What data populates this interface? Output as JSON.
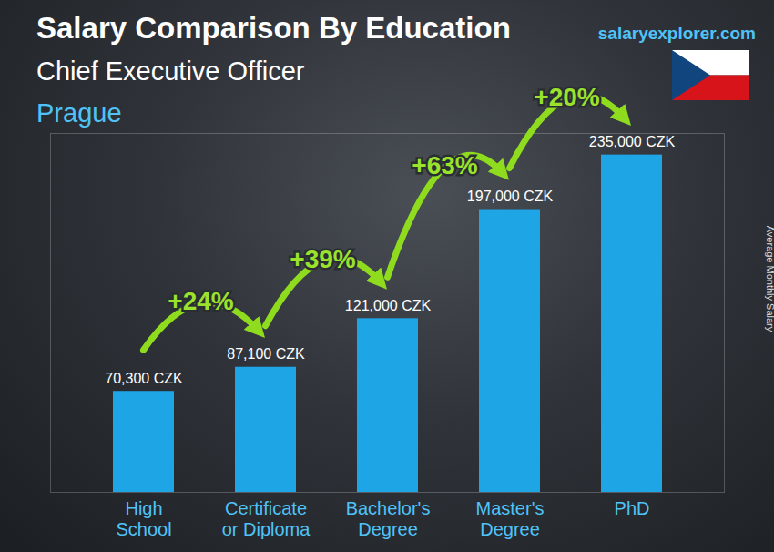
{
  "chart_data": {
    "type": "bar",
    "title": "Salary Comparison By Education",
    "subtitle": [
      "Chief Executive Officer",
      "Prague"
    ],
    "source": "salaryexplorer.com",
    "y_label": "Average Monthly Salary",
    "categories": [
      "High School",
      "Certificate or Diploma",
      "Bachelor's Degree",
      "Master's Degree",
      "PhD"
    ],
    "values": [
      70300,
      87100,
      121000,
      197000,
      235000
    ],
    "value_labels": [
      "70,300 CZK",
      "87,100 CZK",
      "121,000 CZK",
      "197,000 CZK",
      "235,000 CZK"
    ],
    "annotations": [
      "+24%",
      "+39%",
      "+63%",
      "+20%"
    ],
    "color": "#1ea5e6",
    "ylim": [
      0,
      250000
    ],
    "yticks": [],
    "grid": false,
    "data_labels": true,
    "tick_labels": "x"
  }
}
